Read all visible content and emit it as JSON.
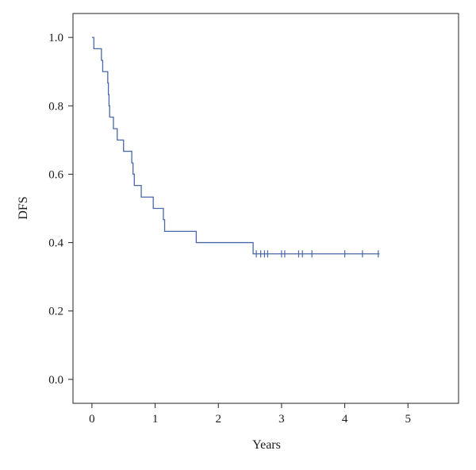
{
  "chart_data": {
    "type": "line",
    "subtype": "kaplan-meier-step",
    "title": "",
    "xlabel": "Years",
    "ylabel": "DFS",
    "xlim": [
      -0.3,
      5.8
    ],
    "ylim": [
      -0.07,
      1.07
    ],
    "x_ticks": [
      0,
      1,
      2,
      3,
      4,
      5
    ],
    "x_tick_labels": [
      "0",
      "1",
      "2",
      "3",
      "4",
      "5"
    ],
    "y_ticks": [
      0.0,
      0.2,
      0.4,
      0.6,
      0.8,
      1.0
    ],
    "y_tick_labels": [
      "0.0",
      "0.2",
      "0.4",
      "0.6",
      "0.8",
      "1.0"
    ],
    "grid": false,
    "legend": "none",
    "series": [
      {
        "color": "#4a67a8",
        "steps": [
          {
            "x": 0.0,
            "y": 1.0
          },
          {
            "x": 0.03,
            "y": 0.967
          },
          {
            "x": 0.15,
            "y": 0.933
          },
          {
            "x": 0.17,
            "y": 0.9
          },
          {
            "x": 0.25,
            "y": 0.867
          },
          {
            "x": 0.26,
            "y": 0.833
          },
          {
            "x": 0.27,
            "y": 0.8
          },
          {
            "x": 0.28,
            "y": 0.767
          },
          {
            "x": 0.34,
            "y": 0.733
          },
          {
            "x": 0.4,
            "y": 0.7
          },
          {
            "x": 0.5,
            "y": 0.667
          },
          {
            "x": 0.63,
            "y": 0.633
          },
          {
            "x": 0.65,
            "y": 0.6
          },
          {
            "x": 0.67,
            "y": 0.567
          },
          {
            "x": 0.78,
            "y": 0.533
          },
          {
            "x": 0.97,
            "y": 0.5
          },
          {
            "x": 1.13,
            "y": 0.467
          },
          {
            "x": 1.15,
            "y": 0.433
          },
          {
            "x": 1.65,
            "y": 0.4
          },
          {
            "x": 2.55,
            "y": 0.367
          }
        ],
        "end_x": 4.55,
        "censored_x": [
          2.6,
          2.67,
          2.73,
          2.78,
          3.0,
          3.05,
          3.27,
          3.33,
          3.48,
          4.0,
          4.28,
          4.53
        ]
      }
    ]
  }
}
